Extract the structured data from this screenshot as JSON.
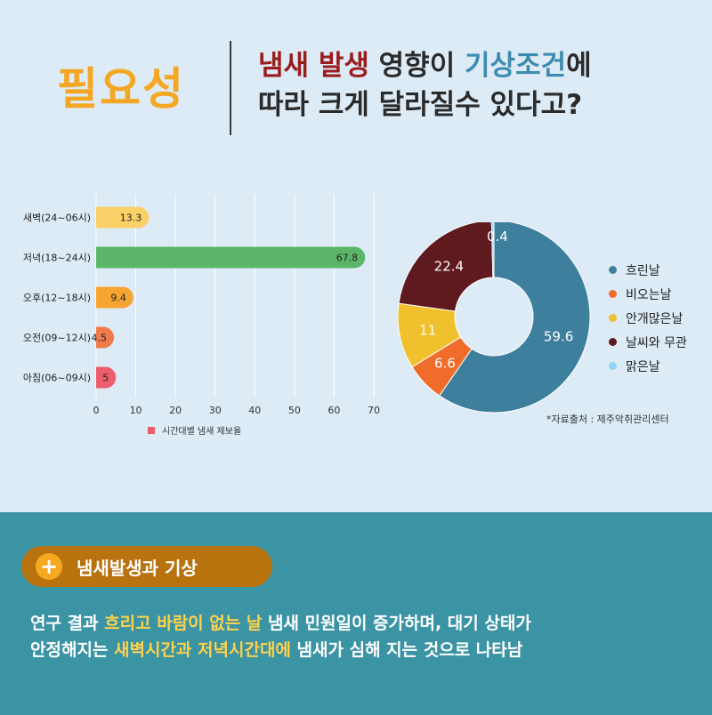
{
  "header": {
    "need": "필요성",
    "line1_a": "냄새 발생",
    "line1_b": " 영향이 ",
    "line1_c": "기상조건",
    "line1_d": "에",
    "line2": "따라 크게 달라질수 있다고?"
  },
  "chart_data": [
    {
      "type": "bar",
      "orientation": "horizontal",
      "categories": [
        "새벽(24~06시)",
        "저녁(18~24시)",
        "오후(12~18시)",
        "오전(09~12시)",
        "아침(06~09시)"
      ],
      "values": [
        13.3,
        67.8,
        9.4,
        4.5,
        5
      ],
      "value_labels": [
        "13.3",
        "67.8",
        "9.4",
        "4.5",
        "5"
      ],
      "colors": [
        "#fbd067",
        "#5bb66a",
        "#f7a531",
        "#f07a4c",
        "#ee5d6c"
      ],
      "xlim": [
        0,
        70
      ],
      "xticks": [
        "0",
        "10",
        "20",
        "30",
        "40",
        "50",
        "60",
        "70"
      ],
      "legend": "시간대별 냄새 제보율",
      "legend_color": "#ee5d6c",
      "grid": true
    },
    {
      "type": "pie",
      "donut": true,
      "labels": [
        "흐린날",
        "비오는날",
        "안개많은날",
        "날씨와 무관",
        "맑은날"
      ],
      "values": [
        59.6,
        6.6,
        11,
        22.4,
        0.4
      ],
      "value_labels": [
        "59.6",
        "6.6",
        "11",
        "22.4",
        "0.4"
      ],
      "colors": [
        "#3f7f9e",
        "#ef6c2a",
        "#f0c12c",
        "#5e1a1e",
        "#8fd3f5"
      ],
      "legend_position": "right"
    }
  ],
  "source": "*자료출처 : 제주악취관리센터",
  "section": {
    "title": "냄새발생과 기상",
    "plus": "+"
  },
  "body": {
    "l1a": "연구 결과 ",
    "l1b": "흐리고 바람이 없는 날",
    "l1c": " 냄새 민원일이 증가하며, 대기 상태가",
    "l2a": "안정해지는  ",
    "l2b": "새벽시간과 저녁시간대에",
    "l2c": " 냄새가 심해 지는 것으로 나타남"
  }
}
